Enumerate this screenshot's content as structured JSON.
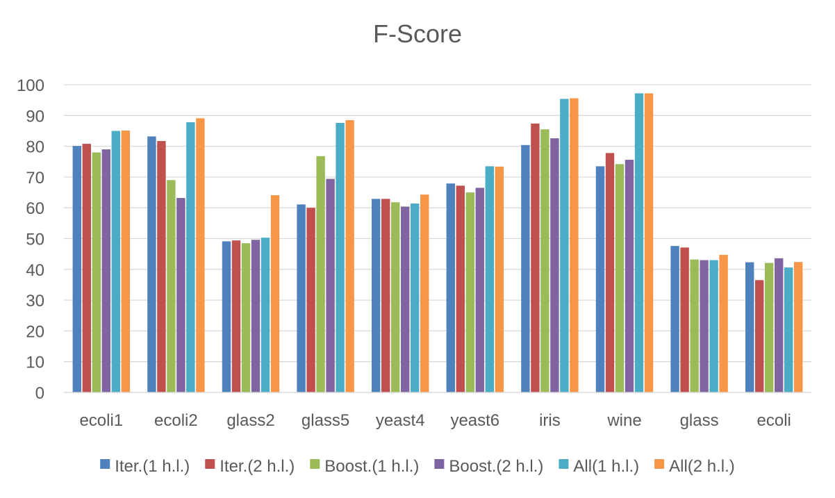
{
  "chart_data": {
    "type": "bar",
    "title": "F-Score",
    "xlabel": "",
    "ylabel": "",
    "ylim": [
      0,
      100
    ],
    "yticks": [
      "0",
      "10",
      "20",
      "30",
      "40",
      "50",
      "60",
      "70",
      "80",
      "90",
      "100"
    ],
    "grid": true,
    "legend_position": "bottom",
    "categories": [
      "ecoli1",
      "ecoli2",
      "glass2",
      "glass5",
      "yeast4",
      "yeast6",
      "iris",
      "wine",
      "glass",
      "ecoli"
    ],
    "series": [
      {
        "name": "Iter.(1 h.l.)",
        "color": "#4f81bd",
        "values": [
          80.1,
          83.2,
          49.1,
          61.1,
          62.9,
          67.9,
          80.4,
          73.5,
          47.6,
          42.3
        ]
      },
      {
        "name": "Iter.(2 h.l.)",
        "color": "#c0504d",
        "values": [
          80.8,
          81.7,
          49.4,
          60.0,
          62.9,
          67.2,
          87.4,
          77.8,
          47.1,
          36.5
        ]
      },
      {
        "name": "Boost.(1 h.l.)",
        "color": "#9bbb59",
        "values": [
          78.0,
          69.0,
          48.5,
          76.8,
          61.8,
          65.0,
          85.5,
          74.2,
          43.2,
          42.1
        ]
      },
      {
        "name": "Boost.(2 h.l.)",
        "color": "#8064a2",
        "values": [
          79.0,
          63.2,
          49.6,
          69.4,
          60.4,
          66.5,
          82.6,
          75.6,
          43.0,
          43.6
        ]
      },
      {
        "name": "All(1 h.l.)",
        "color": "#4bacc6",
        "values": [
          85.0,
          87.8,
          50.3,
          87.6,
          61.4,
          73.5,
          95.4,
          97.2,
          43.0,
          40.6
        ]
      },
      {
        "name": "All(2 h.l.)",
        "color": "#f79646",
        "values": [
          85.1,
          89.1,
          64.1,
          88.5,
          64.3,
          73.4,
          95.6,
          97.2,
          44.7,
          42.4
        ]
      }
    ]
  }
}
